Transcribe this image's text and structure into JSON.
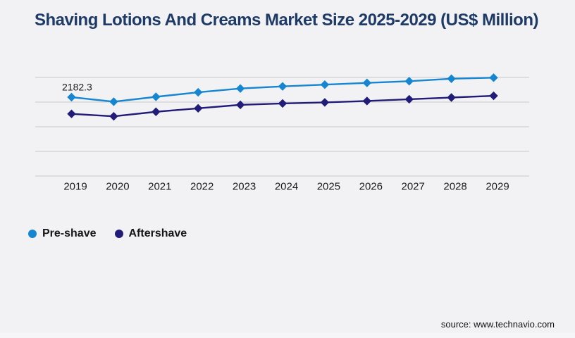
{
  "title": "Shaving Lotions And Creams Market Size 2025-2029 (US$ Million)",
  "source": "source: www.technavio.com",
  "colors": {
    "title_text": "#1e3a66",
    "pre_shave": "#1586cf",
    "aftershave": "#211c78",
    "gridline": "#cfd0d5",
    "axis_label_text": "#1c1c1c",
    "background": "#f2f2f5"
  },
  "chart_data": {
    "type": "line",
    "title": "Shaving Lotions And Creams Market Size 2025-2029 (US$ Million)",
    "unit": "US$ Million",
    "categories": [
      "2019",
      "2020",
      "2021",
      "2022",
      "2023",
      "2024",
      "2025",
      "2026",
      "2027",
      "2028",
      "2029"
    ],
    "series": [
      {
        "name": "Pre-shave",
        "color": "#1586cf",
        "marker": "diamond",
        "values": [
          2182.3,
          2090.5,
          2189.4,
          2281.1,
          2358.8,
          2401.2,
          2436.5,
          2471.8,
          2507.1,
          2556.5,
          2577.7
        ]
      },
      {
        "name": "Aftershave",
        "color": "#211c78",
        "marker": "diamond",
        "values": [
          1843.4,
          1794.0,
          1885.8,
          1956.4,
          2027.0,
          2055.2,
          2076.4,
          2104.6,
          2139.9,
          2175.2,
          2210.5
        ]
      }
    ],
    "annotations": [
      {
        "series": "Pre-shave",
        "category": "2019",
        "text": "2182.3"
      }
    ],
    "x_axis": {
      "labels_visible": true
    },
    "y_axis": {
      "labels_visible": false,
      "gridline_count": 5,
      "assumed_gridline_step": 500
    },
    "grid": "horizontal",
    "legend_position": "bottom-left"
  }
}
